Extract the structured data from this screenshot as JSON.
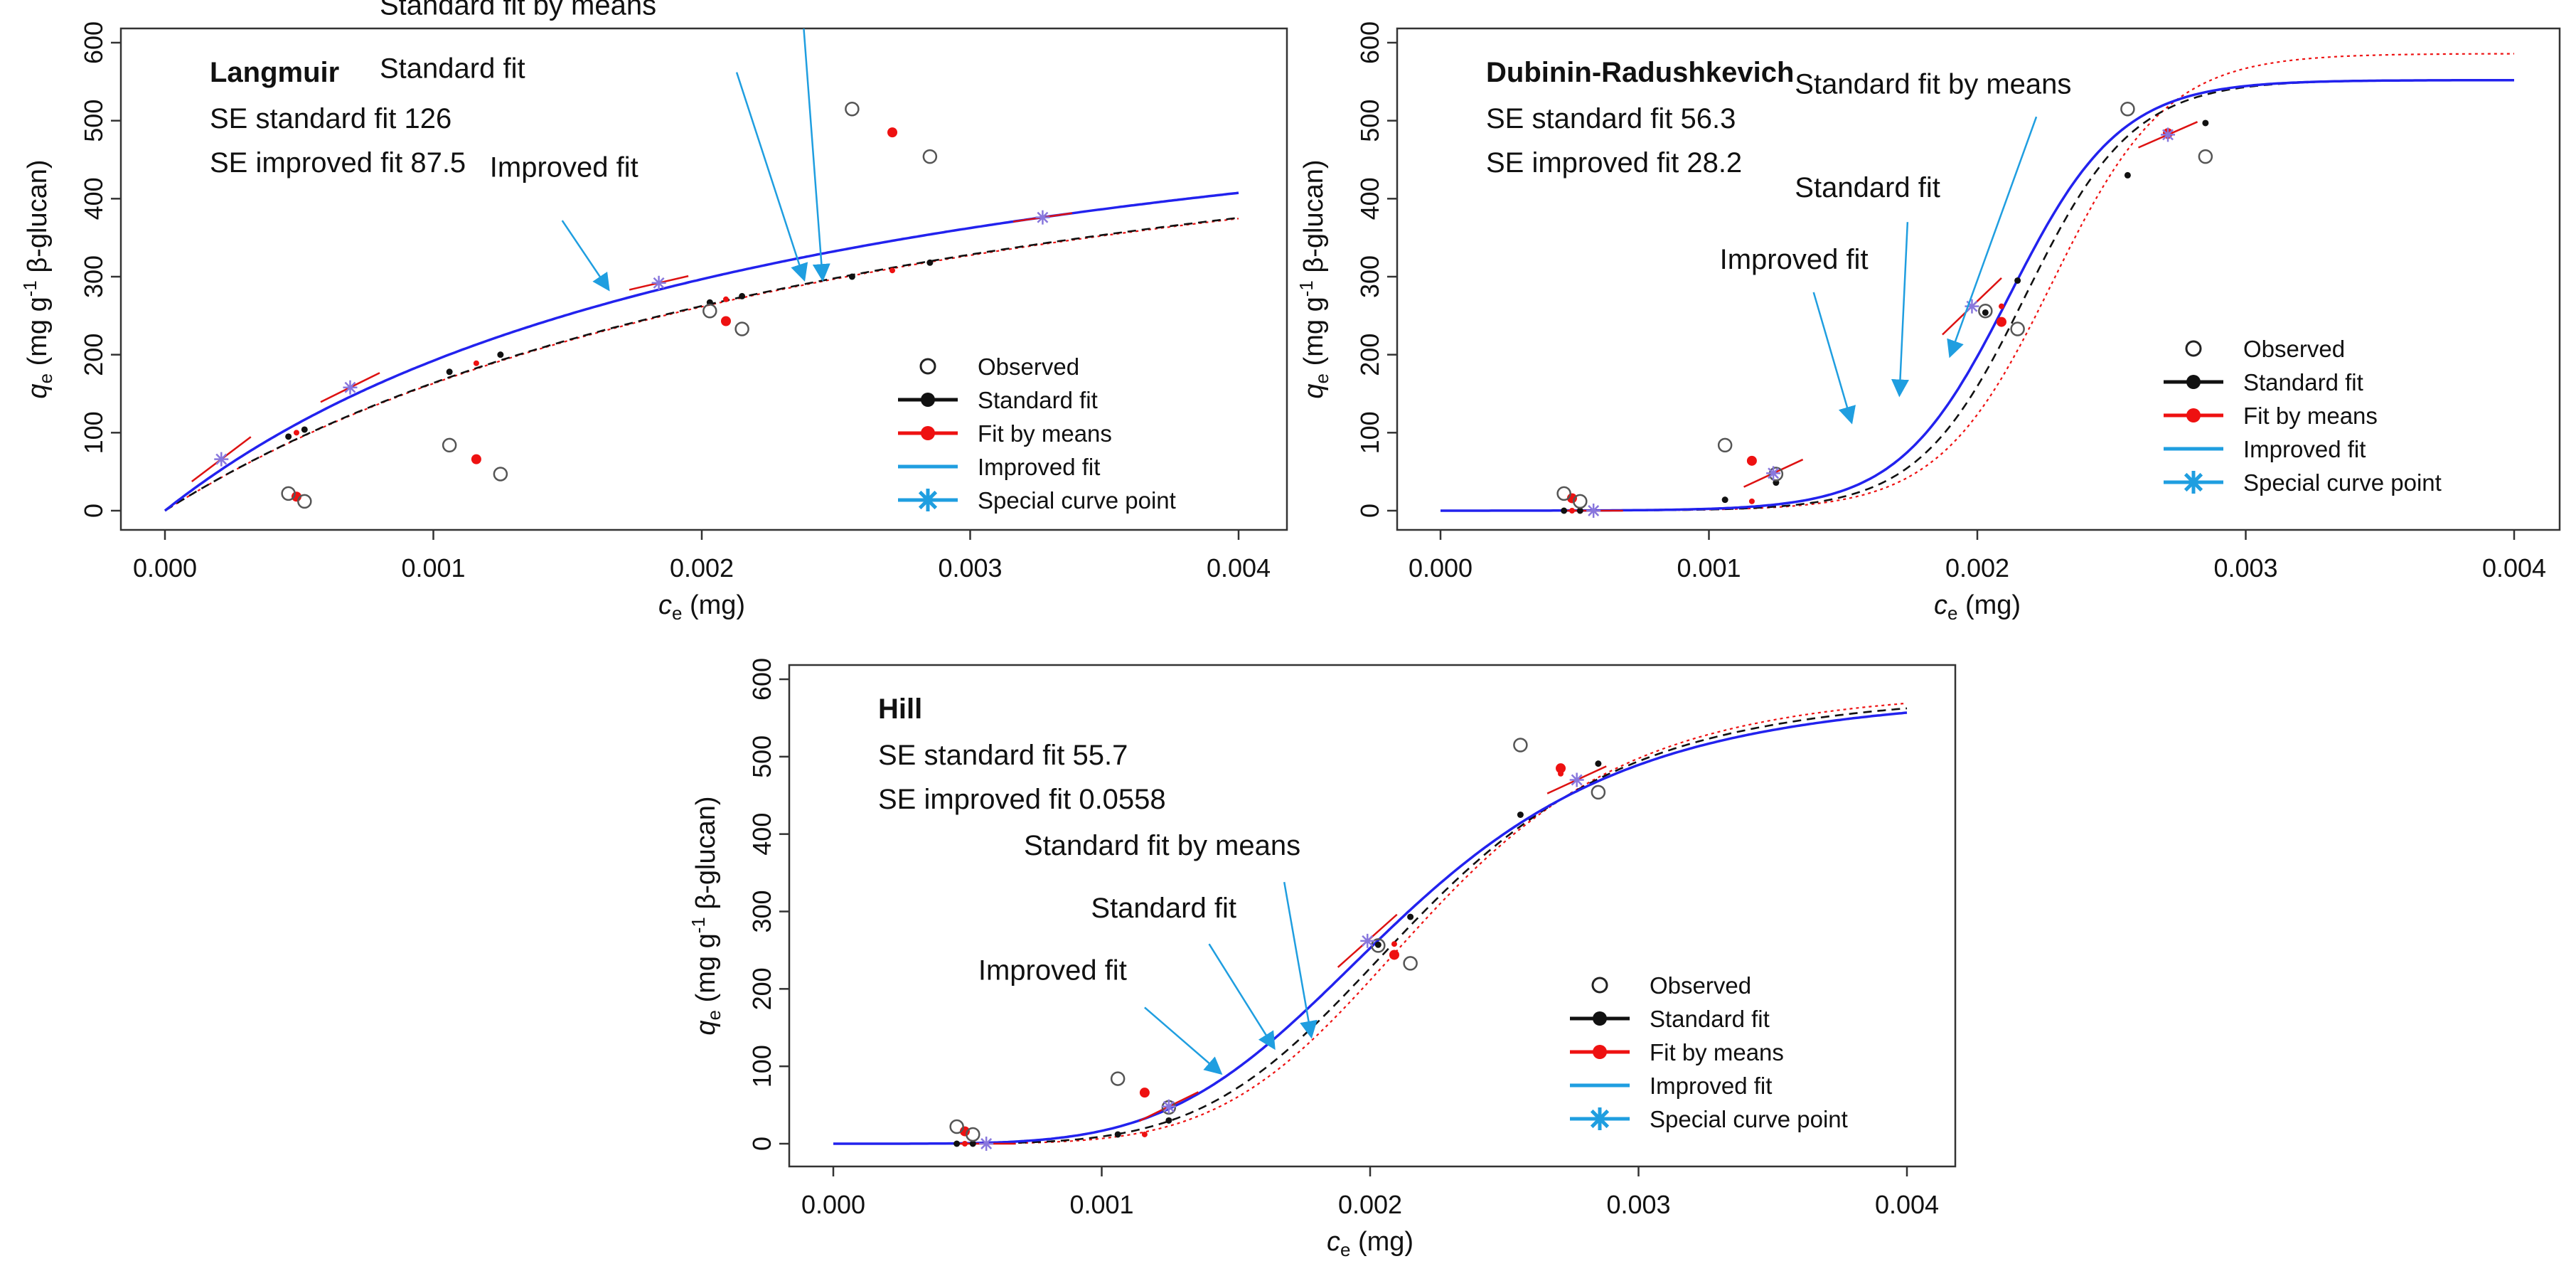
{
  "colors": {
    "observed": "#555555",
    "standard": "#111111",
    "means": "#ee1111",
    "improved": "#2222ee",
    "special": "#8877dd",
    "arrow": "#1f9ee0",
    "tangent": "#dd1111"
  },
  "chart_data": [
    {
      "type": "scatter",
      "model": "langmuir",
      "title": "Langmuir",
      "se_lines": [
        "SE standard fit 126",
        "SE improved fit 87.5"
      ],
      "xlabel_var": "c",
      "xlabel_sub": "e",
      "xlabel_unit": " (mg)",
      "ylabel_var": "q",
      "ylabel_sub": "e",
      "ylabel_pre": " (mg g",
      "ylabel_sup": "-1",
      "ylabel_post": " β-glucan)",
      "xlim": [
        0,
        0.004
      ],
      "ylim": [
        0,
        600
      ],
      "xticks": [
        0,
        0.001,
        0.002,
        0.003,
        0.004
      ],
      "xtick_labels": [
        "0.000",
        "0.001",
        "0.002",
        "0.003",
        "0.004"
      ],
      "yticks": [
        0,
        100,
        200,
        300,
        400,
        500,
        600
      ],
      "ytick_labels": [
        "0",
        "100",
        "200",
        "300",
        "400",
        "500",
        "600"
      ],
      "observed": [
        [
          0.00046,
          22
        ],
        [
          0.00052,
          12
        ],
        [
          0.00106,
          84
        ],
        [
          0.00125,
          47
        ],
        [
          0.00203,
          256
        ],
        [
          0.00215,
          233
        ],
        [
          0.00256,
          515
        ],
        [
          0.00285,
          454
        ]
      ],
      "standard_points": [
        [
          0.00046,
          95
        ],
        [
          0.00052,
          104
        ],
        [
          0.00106,
          178
        ],
        [
          0.00125,
          200
        ],
        [
          0.00203,
          267
        ],
        [
          0.00215,
          275
        ],
        [
          0.00256,
          300
        ],
        [
          0.00285,
          318
        ]
      ],
      "means_points": [
        [
          0.00049,
          18
        ],
        [
          0.00116,
          66
        ],
        [
          0.00209,
          243
        ],
        [
          0.00271,
          485
        ]
      ],
      "means_fit_points": [
        [
          0.00049,
          100
        ],
        [
          0.00116,
          189
        ],
        [
          0.00209,
          271
        ],
        [
          0.00271,
          308
        ]
      ],
      "special_points": [
        [
          0.00021,
          66
        ],
        [
          0.00069,
          158
        ],
        [
          0.00184,
          292
        ],
        [
          0.00327,
          376
        ]
      ],
      "special_slopes": [
        260000,
        170000,
        80000,
        50000
      ],
      "curves": {
        "standard": {
          "qmax": 660,
          "K": 330
        },
        "means": {
          "qmax": 660,
          "K": 328
        },
        "improved": {
          "qmax": 650,
          "K": 420
        }
      },
      "legend": [
        "Observed",
        "Standard fit",
        "Fit by means",
        "Improved fit",
        "Special curve point"
      ],
      "annotations": [
        {
          "text": "Improved fit",
          "tx": 0.00121,
          "ty": 428,
          "ax": 0.00148,
          "ay": 372,
          "hx": 0.00165,
          "hy": 285
        },
        {
          "text": "Standard fit",
          "tx": 0.0008,
          "ty": 555,
          "ax": 0.00213,
          "ay": 562,
          "hx": 0.00238,
          "hy": 298
        },
        {
          "text": "Standard fit by means",
          "tx": 0.0008,
          "ty": 636,
          "ax": 0.00238,
          "ay": 618,
          "hx": 0.00245,
          "hy": 298
        }
      ]
    },
    {
      "type": "scatter",
      "model": "dr",
      "title": "Dubinin-Radushkevich",
      "se_lines": [
        "SE standard fit 56.3",
        "SE improved fit 28.2"
      ],
      "xlabel_var": "c",
      "xlabel_sub": "e",
      "xlabel_unit": " (mg)",
      "ylabel_var": "q",
      "ylabel_sub": "e",
      "ylabel_pre": " (mg g",
      "ylabel_sup": "-1",
      "ylabel_post": " β-glucan)",
      "xlim": [
        0,
        0.004
      ],
      "ylim": [
        0,
        600
      ],
      "xticks": [
        0,
        0.001,
        0.002,
        0.003,
        0.004
      ],
      "xtick_labels": [
        "0.000",
        "0.001",
        "0.002",
        "0.003",
        "0.004"
      ],
      "yticks": [
        0,
        100,
        200,
        300,
        400,
        500,
        600
      ],
      "ytick_labels": [
        "0",
        "100",
        "200",
        "300",
        "400",
        "500",
        "600"
      ],
      "observed": [
        [
          0.00046,
          22
        ],
        [
          0.00052,
          12
        ],
        [
          0.00106,
          84
        ],
        [
          0.00125,
          47
        ],
        [
          0.00203,
          256
        ],
        [
          0.00215,
          233
        ],
        [
          0.00256,
          515
        ],
        [
          0.00285,
          454
        ]
      ],
      "standard_points": [
        [
          0.00046,
          0
        ],
        [
          0.00052,
          0
        ],
        [
          0.00106,
          14
        ],
        [
          0.00125,
          36
        ],
        [
          0.00203,
          254
        ],
        [
          0.00215,
          295
        ],
        [
          0.00256,
          430
        ],
        [
          0.00285,
          497
        ]
      ],
      "means_points": [
        [
          0.00049,
          16
        ],
        [
          0.00116,
          64
        ],
        [
          0.00209,
          242
        ],
        [
          0.00271,
          484
        ]
      ],
      "means_fit_points": [
        [
          0.00049,
          0
        ],
        [
          0.00116,
          12
        ],
        [
          0.00209,
          262
        ],
        [
          0.00271,
          480
        ]
      ],
      "special_points": [
        [
          0.00057,
          0
        ],
        [
          0.00124,
          48
        ],
        [
          0.00198,
          262
        ],
        [
          0.00271,
          482
        ]
      ],
      "special_slopes": [
        0,
        160000,
        330000,
        150000
      ],
      "curves": {
        "standard": {
          "A": 552,
          "center": 0.00218,
          "width": 0.00034
        },
        "means": {
          "A": 586,
          "center": 0.00228,
          "width": 0.00036
        },
        "improved": {
          "A": 552,
          "center": 0.00212,
          "width": 0.00035
        }
      },
      "legend": [
        "Observed",
        "Standard fit",
        "Fit by means",
        "Improved fit",
        "Special curve point"
      ],
      "annotations": [
        {
          "text": "Improved fit",
          "tx": 0.00104,
          "ty": 310,
          "ax": 0.00139,
          "ay": 280,
          "hx": 0.00153,
          "hy": 115
        },
        {
          "text": "Standard fit",
          "tx": 0.00132,
          "ty": 402,
          "ax": 0.00174,
          "ay": 370,
          "hx": 0.00171,
          "hy": 150
        },
        {
          "text": "Standard fit by means",
          "tx": 0.00132,
          "ty": 535,
          "ax": 0.00222,
          "ay": 505,
          "hx": 0.0019,
          "hy": 200
        }
      ]
    },
    {
      "type": "scatter",
      "model": "hill",
      "title": "Hill",
      "se_lines": [
        "SE standard fit 55.7",
        "SE improved fit 0.0558"
      ],
      "xlabel_var": "c",
      "xlabel_sub": "e",
      "xlabel_unit": " (mg)",
      "ylabel_var": "q",
      "ylabel_sub": "e",
      "ylabel_pre": " (mg g",
      "ylabel_sup": "-1",
      "ylabel_post": " β-glucan)",
      "xlim": [
        0,
        0.004
      ],
      "ylim": [
        0,
        600
      ],
      "xticks": [
        0,
        0.001,
        0.002,
        0.003,
        0.004
      ],
      "xtick_labels": [
        "0.000",
        "0.001",
        "0.002",
        "0.003",
        "0.004"
      ],
      "yticks": [
        0,
        100,
        200,
        300,
        400,
        500,
        600
      ],
      "ytick_labels": [
        "0",
        "100",
        "200",
        "300",
        "400",
        "500",
        "600"
      ],
      "observed": [
        [
          0.00046,
          22
        ],
        [
          0.00052,
          12
        ],
        [
          0.00106,
          84
        ],
        [
          0.00125,
          47
        ],
        [
          0.00203,
          256
        ],
        [
          0.00215,
          233
        ],
        [
          0.00256,
          515
        ],
        [
          0.00285,
          454
        ]
      ],
      "standard_points": [
        [
          0.00046,
          0
        ],
        [
          0.00052,
          0
        ],
        [
          0.00106,
          12
        ],
        [
          0.00125,
          30
        ],
        [
          0.00203,
          257
        ],
        [
          0.00215,
          293
        ],
        [
          0.00256,
          425
        ],
        [
          0.00285,
          491
        ]
      ],
      "means_points": [
        [
          0.00049,
          16
        ],
        [
          0.00116,
          66
        ],
        [
          0.00209,
          244
        ],
        [
          0.00271,
          485
        ]
      ],
      "means_fit_points": [
        [
          0.00049,
          0
        ],
        [
          0.00116,
          12
        ],
        [
          0.00209,
          258
        ],
        [
          0.00271,
          478
        ]
      ],
      "special_points": [
        [
          0.00057,
          0
        ],
        [
          0.00125,
          48
        ],
        [
          0.00199,
          262
        ],
        [
          0.00277,
          470
        ]
      ],
      "special_slopes": [
        0,
        170000,
        310000,
        160000
      ],
      "curves": {
        "standard": {
          "A": 585,
          "K": 0.00218,
          "n": 5.3
        },
        "means": {
          "A": 590,
          "K": 0.00222,
          "n": 5.6
        },
        "improved": {
          "A": 585,
          "K": 0.00212,
          "n": 4.7
        }
      },
      "legend": [
        "Observed",
        "Standard fit",
        "Fit by means",
        "Improved fit",
        "Special curve point"
      ],
      "annotations": [
        {
          "text": "Improved fit",
          "tx": 0.00054,
          "ty": 212,
          "ax": 0.00116,
          "ay": 176,
          "hx": 0.00144,
          "hy": 92
        },
        {
          "text": "Standard fit",
          "tx": 0.00096,
          "ty": 292,
          "ax": 0.0014,
          "ay": 258,
          "hx": 0.00164,
          "hy": 125
        },
        {
          "text": "Standard fit by means",
          "tx": 0.00071,
          "ty": 373,
          "ax": 0.00168,
          "ay": 338,
          "hx": 0.00178,
          "hy": 140
        }
      ]
    }
  ]
}
